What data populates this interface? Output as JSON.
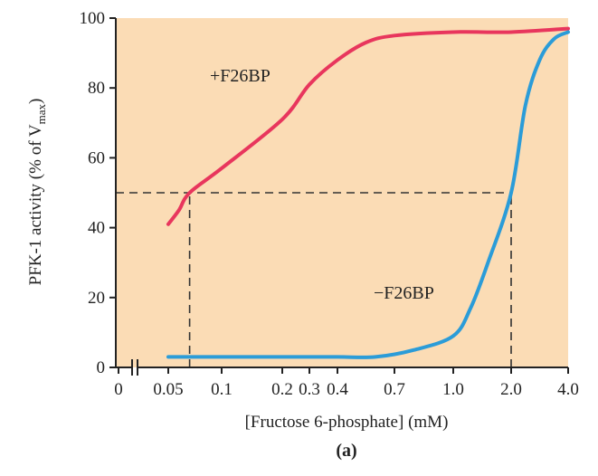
{
  "chart_data": {
    "type": "line",
    "xlabel": "[Fructose 6-phosphate] (mM)",
    "ylabel": "PFK-1 activity (% of V",
    "ylabel_sub": "max",
    "ylabel_tail": ")",
    "panel_label": "(a)",
    "xticks": [
      "0",
      "0.05",
      "0.1",
      "0.2",
      "0.3",
      "0.4",
      "0.7",
      "1.0",
      "2.0",
      "4.0"
    ],
    "yticks": [
      0,
      20,
      40,
      60,
      80,
      100
    ],
    "ylim": [
      0,
      100
    ],
    "xscale": "categorical-ticks with axis break after 0",
    "grid": false,
    "background_color": "#fbdcb5",
    "series": [
      {
        "name": "+F26BP",
        "color": "#e8365d",
        "x": [
          0.05,
          0.06,
          0.07,
          0.1,
          0.2,
          0.3,
          0.4,
          0.55,
          0.7,
          1.0,
          2.0,
          4.0
        ],
        "y": [
          41,
          45,
          50,
          57,
          71,
          81,
          88,
          93,
          95,
          96,
          96,
          97
        ]
      },
      {
        "name": "−F26BP",
        "color": "#2b9cd8",
        "x": [
          0.05,
          0.2,
          0.4,
          0.6,
          0.8,
          1.0,
          1.3,
          1.6,
          2.0,
          2.5,
          3.0,
          3.5,
          4.0
        ],
        "y": [
          3,
          3,
          3,
          3,
          5,
          9,
          17,
          30,
          50,
          75,
          88,
          94,
          96
        ]
      }
    ],
    "reference_lines": [
      {
        "y": 50,
        "x_from": 0,
        "x_to": 2.0,
        "style": "dashed"
      },
      {
        "x": 0.07,
        "y_from": 0,
        "y_to": 50,
        "style": "dashed"
      },
      {
        "x": 2.0,
        "y_from": 0,
        "y_to": 50,
        "style": "dashed"
      }
    ]
  }
}
